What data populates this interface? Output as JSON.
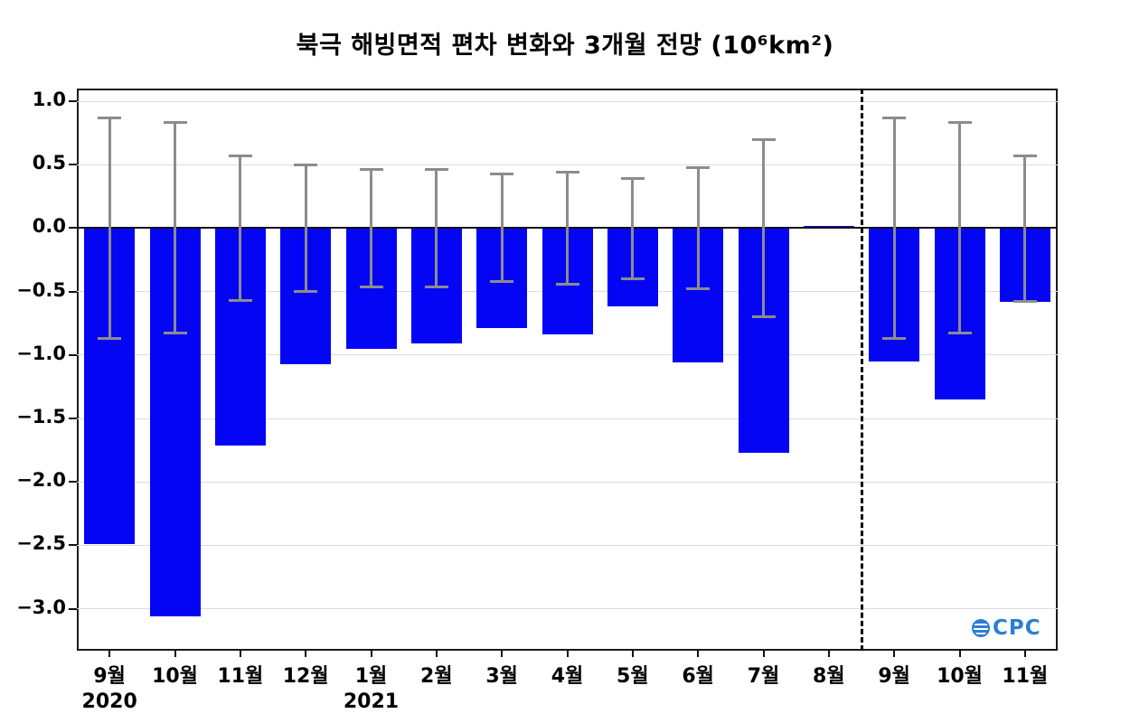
{
  "title": "북극 해빙면적 편차 변화와 3개월 전망 (10⁶km²)",
  "logo": {
    "text": "CPC"
  },
  "chart_data": {
    "type": "bar",
    "title": "북극 해빙면적 편차 변화와 3개월 전망 (10⁶km²)",
    "categories": [
      "9월",
      "10월",
      "11월",
      "12월",
      "1월",
      "2월",
      "3월",
      "4월",
      "5월",
      "6월",
      "7월",
      "8월",
      "9월",
      "10월",
      "11월"
    ],
    "year_labels": [
      {
        "index": 0,
        "label": "2020"
      },
      {
        "index": 4,
        "label": "2021"
      }
    ],
    "values": [
      -2.49,
      -3.06,
      -1.71,
      -1.07,
      -0.95,
      -0.91,
      -0.79,
      -0.84,
      -0.62,
      -1.06,
      -1.77,
      0.01,
      -1.05,
      -1.35,
      -0.58
    ],
    "error_high": [
      0.87,
      0.83,
      0.57,
      0.5,
      0.46,
      0.46,
      0.43,
      0.44,
      0.39,
      0.48,
      0.7,
      0.0,
      0.87,
      0.83,
      0.57
    ],
    "error_low": [
      -0.87,
      -0.83,
      -0.57,
      -0.5,
      -0.46,
      -0.46,
      -0.42,
      -0.44,
      -0.4,
      -0.48,
      -0.7,
      0.0,
      -0.87,
      -0.83,
      -0.58
    ],
    "forecast_divider_after_index": 11,
    "y_ticks": [
      1.0,
      0.5,
      0.0,
      -0.5,
      -1.0,
      -1.5,
      -2.0,
      -2.5,
      -3.0
    ],
    "ylim": [
      -3.33,
      1.1
    ],
    "grid": true,
    "legend": "none",
    "bar_color": "#0505F5",
    "error_color": "#8c8c8c",
    "xlabel": "",
    "ylabel": ""
  }
}
